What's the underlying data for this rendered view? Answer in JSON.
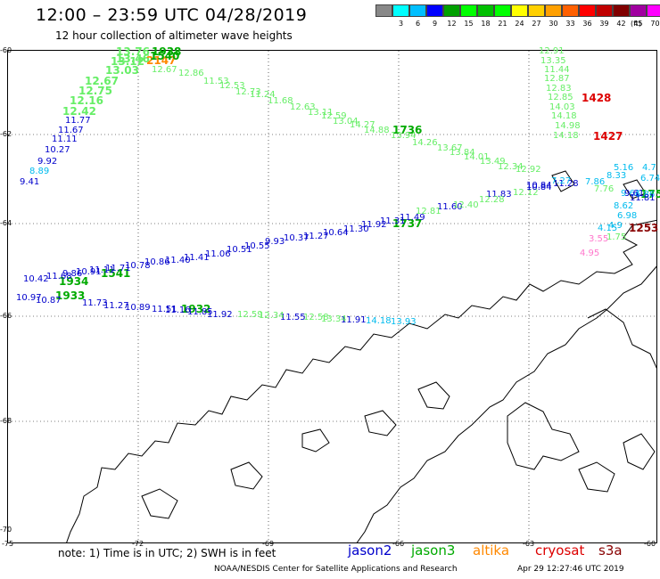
{
  "header": {
    "title": "12:00 – 23:59 UTC 04/28/2019",
    "subtitle": "12 hour collection of altimeter wave heights"
  },
  "colorbar": {
    "colors": [
      "#888888",
      "#00ffff",
      "#00bfff",
      "#0000ff",
      "#00a000",
      "#00ff00",
      "#00c000",
      "#00ff00",
      "#ffff00",
      "#ffd000",
      "#ffa000",
      "#ff6000",
      "#ff0000",
      "#c00000",
      "#800000",
      "#a000a0",
      "#ff00ff",
      "#000000"
    ],
    "labels": [
      "3",
      "6",
      "9",
      "12",
      "15",
      "18",
      "21",
      "24",
      "27",
      "30",
      "33",
      "36",
      "39",
      "42",
      "45",
      "70"
    ],
    "unit": "(ft)"
  },
  "axes": {
    "lat_labels": [
      "-60",
      "-62",
      "-64",
      "-66",
      "-68",
      "-70"
    ],
    "lon_labels": [
      "-75",
      "-72",
      "-69",
      "-66",
      "-63",
      "-60"
    ]
  },
  "tracks": [
    {
      "satellite": "jason3",
      "color": "#66ee66",
      "values": [
        "13.76",
        "13.46",
        "13.12",
        "13.03",
        "12.67",
        "12.75",
        "12.16",
        "12.42"
      ]
    },
    {
      "satellite": "jason2",
      "color": "#0000cc",
      "values": [
        "11.77",
        "11.67",
        "11.11",
        "10.27",
        "9.92"
      ]
    },
    {
      "satellite": "jason2-low",
      "color": "#00bbee",
      "values": [
        "8.89"
      ]
    },
    {
      "satellite": "jason2-end",
      "color": "#0000cc",
      "values": [
        "9.41"
      ]
    },
    {
      "satellite": "altika",
      "color": "#ff8800",
      "values": [
        "2147"
      ]
    },
    {
      "satellite": "jason3",
      "color": "#00aa00",
      "values": [
        "1938",
        "1540",
        "1541",
        "1934",
        "1933",
        "1932",
        "1736",
        "1737",
        "1754"
      ]
    },
    {
      "satellite": "jason3-desc",
      "color": "#66ee66",
      "values": [
        "12.67",
        "12.86",
        "11.53",
        "12.53",
        "12.73",
        "11.24",
        "11.68",
        "12.63",
        "13.11",
        "12.59",
        "13.04",
        "14.27",
        "14.88",
        "13.94",
        "14.26",
        "13.67",
        "13.84",
        "14.01",
        "13.49",
        "12.34",
        "12.92"
      ]
    },
    {
      "satellite": "jason2-mid",
      "color": "#0000cc",
      "values": [
        "11.60",
        "11.83",
        "10.84",
        "11.28",
        "11.49",
        "11.31",
        "11.92",
        "11.30",
        "10.64",
        "11.27",
        "10.37",
        "9.93",
        "10.55",
        "10.51",
        "11.06",
        "11.41",
        "11.40",
        "10.86",
        "10.78",
        "11.71",
        "11.11",
        "10.91",
        "9.86",
        "11.68",
        "10.42"
      ]
    },
    {
      "satellite": "jason3-mid",
      "color": "#66ee66",
      "values": [
        "12.81",
        "12.40",
        "12.28",
        "12.12"
      ]
    },
    {
      "satellite": "jason2-south",
      "color": "#0000cc",
      "values": [
        "10.97",
        "10.87",
        "11.73",
        "11.27",
        "10.89",
        "11.51",
        "11.16",
        "11.85",
        "11.92",
        "11.55",
        "11.91"
      ]
    },
    {
      "satellite": "jason3-south",
      "color": "#66ee66",
      "values": [
        "12.59",
        "12.34",
        "12.58",
        "13.34"
      ]
    },
    {
      "satellite": "jason2-south-cyan",
      "color": "#00bbee",
      "values": [
        "14.18",
        "13.93"
      ]
    },
    {
      "satellite": "cryosat",
      "color": "#dd0000",
      "values": [
        "1428",
        "1427"
      ]
    },
    {
      "satellite": "s3a",
      "color": "#880000",
      "values": [
        "1253"
      ]
    },
    {
      "satellite": "east-jason3",
      "color": "#66ee66",
      "values": [
        "12.91",
        "13.35",
        "11.44",
        "12.87",
        "12.83",
        "12.85",
        "14.03",
        "14.18",
        "14.98",
        "14.18"
      ]
    },
    {
      "satellite": "east-misc",
      "color": "#00bbee",
      "values": [
        "8.33",
        "5.16",
        "4.7",
        "6.74",
        "7.27",
        "7.86",
        "9.61",
        "6.86",
        "8.62",
        "6.98",
        "4.9",
        "4.15"
      ]
    },
    {
      "satellite": "east-blue",
      "color": "#0000cc",
      "values": [
        "10.84",
        "9.61",
        "11.81"
      ]
    },
    {
      "satellite": "east-pink",
      "color": "#ff77cc",
      "values": [
        "3.55",
        "4.95"
      ]
    },
    {
      "satellite": "east-green2",
      "color": "#66ee66",
      "values": [
        "7.76",
        "1.75"
      ]
    }
  ],
  "note": "note:  1) Time is in UTC;  2) SWH is in feet",
  "legend": [
    {
      "name": "jason2",
      "color": "#0000cc"
    },
    {
      "name": "jason3",
      "color": "#00aa00"
    },
    {
      "name": "altika",
      "color": "#ff8800"
    },
    {
      "name": "cryosat",
      "color": "#dd0000"
    },
    {
      "name": "s3a",
      "color": "#880000"
    }
  ],
  "footer": {
    "org": "NOAA/NESDIS Center for Satellite Applications and Research",
    "timestamp": "Apr 29 12:27:46 UTC 2019"
  }
}
